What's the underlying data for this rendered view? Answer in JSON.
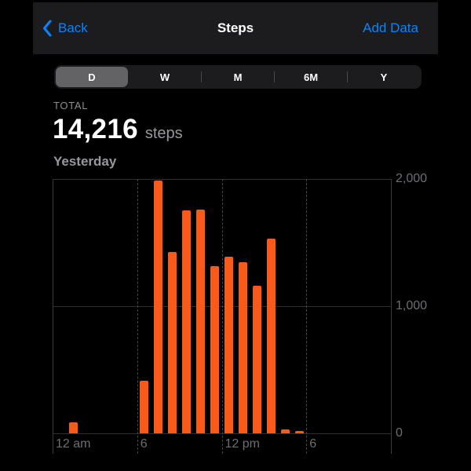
{
  "nav": {
    "back_label": "Back",
    "title": "Steps",
    "add_data_label": "Add Data"
  },
  "segmented": {
    "options": [
      "D",
      "W",
      "M",
      "6M",
      "Y"
    ],
    "selected_index": 0
  },
  "summary": {
    "kicker": "TOTAL",
    "value": "14,216",
    "unit": "steps",
    "period": "Yesterday"
  },
  "chart_data": {
    "type": "bar",
    "title": "Steps per hour — Yesterday",
    "unit": "steps",
    "x_hours": [
      1,
      6,
      7,
      8,
      9,
      10,
      11,
      12,
      13,
      14,
      15,
      16,
      17
    ],
    "values": [
      85,
      415,
      1990,
      1425,
      1755,
      1760,
      1315,
      1390,
      1345,
      1160,
      1530,
      30,
      16
    ],
    "total": 14216,
    "xlim_hours": [
      0,
      24
    ],
    "ylim": [
      0,
      2000
    ],
    "y_ticks": [
      0,
      1000,
      2000
    ],
    "y_tick_labels": [
      "0",
      "1,000",
      "2,000"
    ],
    "x_tick_hours": [
      0,
      6,
      12,
      18
    ],
    "x_tick_labels": [
      "12 am",
      "6",
      "12 pm",
      "6"
    ],
    "y_axis_side": "right",
    "grid": true,
    "bar_color": "#fa5a19"
  },
  "colors": {
    "accent": "#0a84ff",
    "nav_bg": "#1c1c1e",
    "segment_bg": "#1c1c1e",
    "segment_thumb": "#636366",
    "bar": "#fa5a19",
    "text_primary": "#ffffff",
    "text_secondary": "#98989d",
    "axis_text": "#6e6e73"
  }
}
